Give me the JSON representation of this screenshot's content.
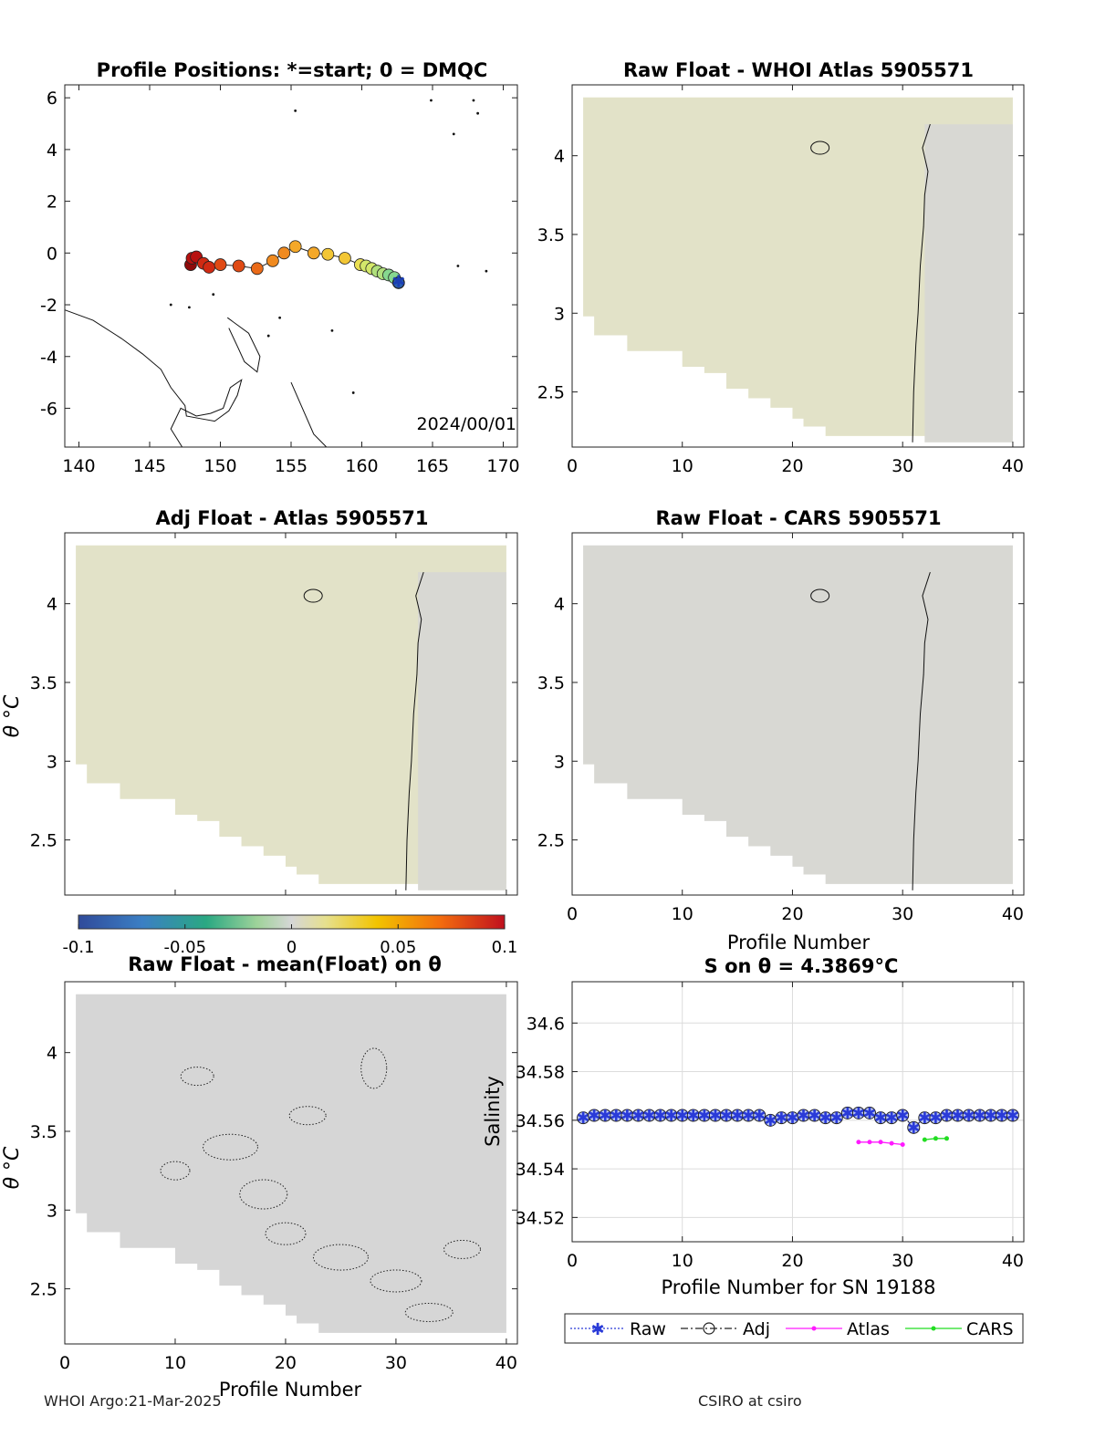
{
  "colors": {
    "field": "#e2e2c8",
    "field_cool": "#d8d8d3",
    "map_fill": "#d8d8d8",
    "raw": "#2a3bd8",
    "atlas": "#ff1aff",
    "cars": "#22dd22"
  },
  "footer": {
    "left": "WHOI Argo:21-Mar-2025",
    "right": "CSIRO at csiro"
  },
  "chart_data": [
    {
      "id": "map",
      "type": "scatter",
      "title": "Profile Positions: *=start; 0 = DMQC",
      "xlim": [
        139,
        171
      ],
      "ylim": [
        -7.5,
        6.5
      ],
      "xticks": [
        "140",
        "145",
        "150",
        "155",
        "160",
        "165",
        "170"
      ],
      "yticks": [
        "6",
        "4",
        "2",
        "0",
        "-2",
        "-4",
        "-6"
      ],
      "annotation": "2024/00/01",
      "lon": [
        162.6,
        162.3,
        161.9,
        161.5,
        161.1,
        160.7,
        160.3,
        159.9,
        158.8,
        157.6,
        156.6,
        155.3,
        154.5,
        153.7,
        152.6,
        151.3,
        150.0,
        149.2,
        148.8,
        148.3,
        148.0,
        147.9
      ],
      "lat": [
        -1.15,
        -0.95,
        -0.85,
        -0.8,
        -0.7,
        -0.6,
        -0.5,
        -0.45,
        -0.2,
        -0.05,
        0.0,
        0.25,
        0.0,
        -0.3,
        -0.6,
        -0.5,
        -0.45,
        -0.55,
        -0.4,
        -0.15,
        -0.2,
        -0.45
      ],
      "start_marker": {
        "lon": 162.6,
        "lat": -1.1
      }
    },
    {
      "id": "raw-whoi",
      "type": "heatmap",
      "title": "Raw Float - WHOI Atlas  5905571",
      "xlim": [
        0,
        41
      ],
      "ylim": [
        2.15,
        4.45
      ],
      "xticks": [
        "0",
        "10",
        "20",
        "30",
        "40"
      ],
      "yticks": [
        "4",
        "3.5",
        "3",
        "2.5"
      ]
    },
    {
      "id": "adj-atlas",
      "type": "heatmap",
      "title": "Adj Float - Atlas  5905571",
      "ylabel": "θ °C",
      "xlim": [
        0,
        41
      ],
      "ylim": [
        2.15,
        4.45
      ],
      "yticks": [
        "4",
        "3.5",
        "3",
        "2.5"
      ]
    },
    {
      "id": "raw-cars",
      "type": "heatmap",
      "title": "Raw Float - CARS  5905571",
      "xlabel": "Profile Number",
      "xlim": [
        0,
        41
      ],
      "ylim": [
        2.15,
        4.45
      ],
      "xticks": [
        "0",
        "10",
        "20",
        "30",
        "40"
      ],
      "yticks": [
        "4",
        "3.5",
        "3",
        "2.5"
      ]
    },
    {
      "id": "colorbar",
      "type": "colorbar",
      "range": [
        -0.1,
        0.1
      ],
      "ticks": [
        "-0.1",
        "-0.05",
        "0",
        "0.05",
        "0.1"
      ]
    },
    {
      "id": "raw-mean",
      "type": "heatmap",
      "title": "Raw Float - mean(Float) on θ",
      "ylabel": "θ °C",
      "xlabel": "Profile Number",
      "xlim": [
        0,
        41
      ],
      "ylim": [
        2.15,
        4.45
      ],
      "xticks": [
        "0",
        "10",
        "20",
        "30",
        "40"
      ],
      "yticks": [
        "4",
        "3.5",
        "3",
        "2.5"
      ]
    },
    {
      "id": "salinity",
      "type": "line",
      "title": "S on θ = 4.3869°C",
      "xlabel": "Profile Number for SN 19188",
      "ylabel": "Salinity",
      "xlim": [
        0,
        41
      ],
      "ylim": [
        34.51,
        34.617
      ],
      "grid": true,
      "xticks": [
        "0",
        "10",
        "20",
        "30",
        "40"
      ],
      "yticks": [
        "34.6",
        "34.58",
        "34.56",
        "34.54",
        "34.52"
      ],
      "x": [
        1,
        2,
        3,
        4,
        5,
        6,
        7,
        8,
        9,
        10,
        11,
        12,
        13,
        14,
        15,
        16,
        17,
        18,
        19,
        20,
        21,
        22,
        23,
        24,
        25,
        26,
        27,
        28,
        29,
        30,
        31,
        32,
        33,
        34,
        35,
        36,
        37,
        38,
        39,
        40
      ],
      "series": [
        {
          "name": "Raw",
          "values": [
            34.561,
            34.562,
            34.562,
            34.562,
            34.562,
            34.562,
            34.562,
            34.562,
            34.562,
            34.562,
            34.562,
            34.562,
            34.562,
            34.562,
            34.562,
            34.562,
            34.562,
            34.56,
            34.561,
            34.561,
            34.562,
            34.562,
            34.561,
            34.561,
            34.563,
            34.563,
            34.563,
            34.561,
            34.561,
            34.562,
            34.557,
            34.561,
            34.561,
            34.562,
            34.562,
            34.562,
            34.562,
            34.562,
            34.562,
            34.562
          ]
        },
        {
          "name": "Adj",
          "values": [
            34.561,
            34.562,
            34.562,
            34.562,
            34.562,
            34.562,
            34.562,
            34.562,
            34.562,
            34.562,
            34.562,
            34.562,
            34.562,
            34.562,
            34.562,
            34.562,
            34.562,
            34.56,
            34.561,
            34.561,
            34.562,
            34.562,
            34.561,
            34.561,
            34.563,
            34.563,
            34.563,
            34.561,
            34.561,
            34.562,
            34.557,
            34.561,
            34.561,
            34.562,
            34.562,
            34.562,
            34.562,
            34.562,
            34.562,
            34.562
          ]
        },
        {
          "name": "Atlas",
          "x": [
            26,
            27,
            28,
            29,
            30
          ],
          "values": [
            34.551,
            34.551,
            34.551,
            34.5505,
            34.55
          ]
        },
        {
          "name": "CARS",
          "x": [
            32,
            33,
            34
          ],
          "values": [
            34.552,
            34.5525,
            34.5525
          ]
        }
      ]
    }
  ]
}
